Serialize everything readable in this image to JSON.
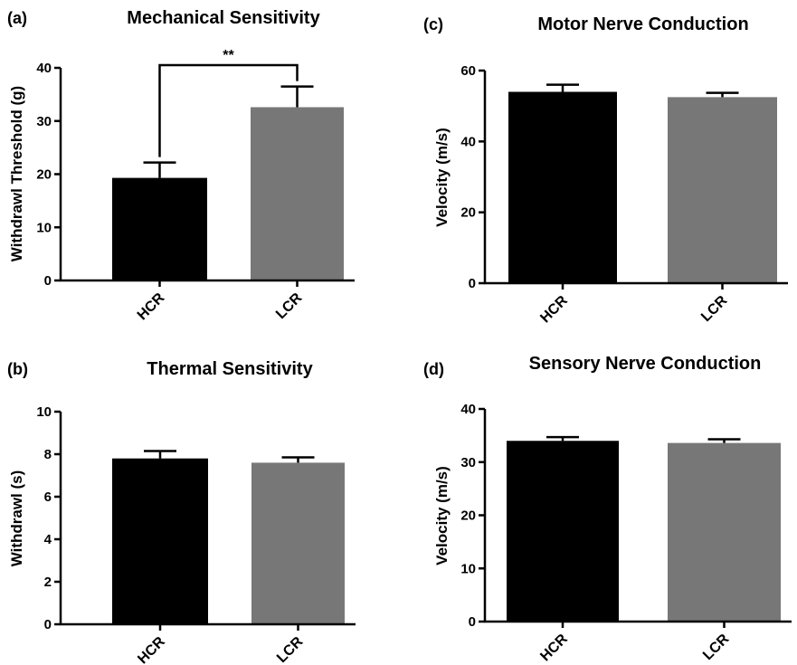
{
  "chart_data": [
    {
      "panel": "(a)",
      "type": "bar",
      "title": "Mechanical Sensitivity",
      "xlabel": "",
      "ylabel": "Withdrawl Threshold (g)",
      "categories": [
        "HCR",
        "LCR"
      ],
      "values": [
        19.3,
        32.6
      ],
      "errors": [
        2.9,
        3.9
      ],
      "colors": [
        "#000000",
        "#777777"
      ],
      "ylim": [
        0,
        40
      ],
      "yticks": [
        0,
        10,
        20,
        30,
        40
      ],
      "significance": "**",
      "grid": false
    },
    {
      "panel": "(c)",
      "type": "bar",
      "title": "Motor Nerve Conduction",
      "xlabel": "",
      "ylabel": "Velocity (m/s)",
      "categories": [
        "HCR",
        "LCR"
      ],
      "values": [
        54.0,
        52.5
      ],
      "errors": [
        2.0,
        1.2
      ],
      "colors": [
        "#000000",
        "#777777"
      ],
      "ylim": [
        0,
        60
      ],
      "yticks": [
        0,
        20,
        40,
        60
      ],
      "grid": false
    },
    {
      "panel": "(b)",
      "type": "bar",
      "title": "Thermal Sensitivity",
      "xlabel": "",
      "ylabel": "Withdrawl (s)",
      "categories": [
        "HCR",
        "LCR"
      ],
      "values": [
        7.8,
        7.6
      ],
      "errors": [
        0.35,
        0.25
      ],
      "colors": [
        "#000000",
        "#777777"
      ],
      "ylim": [
        0,
        10
      ],
      "yticks": [
        0,
        2,
        4,
        6,
        8,
        10
      ],
      "grid": false
    },
    {
      "panel": "(d)",
      "type": "bar",
      "title": "Sensory Nerve Conduction",
      "xlabel": "",
      "ylabel": "Velocity (m/s)",
      "categories": [
        "HCR",
        "LCR"
      ],
      "values": [
        34.0,
        33.6
      ],
      "errors": [
        0.7,
        0.7
      ],
      "colors": [
        "#000000",
        "#777777"
      ],
      "ylim": [
        0,
        40
      ],
      "yticks": [
        0,
        10,
        20,
        30,
        40
      ],
      "grid": false
    }
  ]
}
